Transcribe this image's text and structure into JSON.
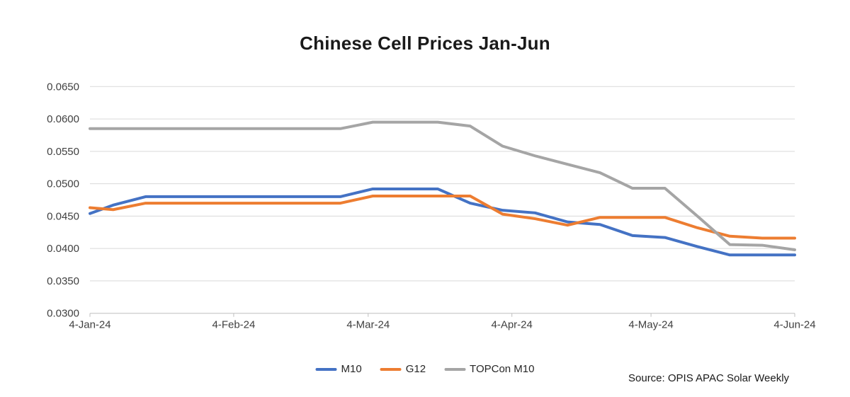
{
  "title": "Chinese Cell Prices Jan-Jun",
  "source_note": "Source: OPIS APAC Solar Weekly",
  "colors": {
    "m10": "#4472C4",
    "g12": "#ED7D31",
    "topcon_m10": "#A5A5A5",
    "gridline": "#D9D9D9",
    "axis_line": "#BFBFBF",
    "axis_text": "#404040"
  },
  "chart_data": {
    "type": "line",
    "title": "Chinese Cell Prices Jan-Jun",
    "xlabel": "",
    "ylabel": "",
    "grid": true,
    "legend_position": "bottom",
    "source": "Source: OPIS APAC Solar Weekly",
    "x": [
      "4-Jan-24",
      "9-Jan-24",
      "16-Jan-24",
      "23-Jan-24",
      "30-Jan-24",
      "6-Feb-24",
      "13-Feb-24",
      "20-Feb-24",
      "27-Feb-24",
      "5-Mar-24",
      "12-Mar-24",
      "19-Mar-24",
      "26-Mar-24",
      "2-Apr-24",
      "9-Apr-24",
      "16-Apr-24",
      "23-Apr-24",
      "30-Apr-24",
      "7-May-24",
      "14-May-24",
      "21-May-24",
      "28-May-24",
      "4-Jun-24"
    ],
    "x_day_offsets": [
      0,
      5,
      12,
      19,
      26,
      33,
      40,
      47,
      54,
      61,
      68,
      75,
      82,
      89,
      96,
      103,
      110,
      117,
      124,
      131,
      138,
      145,
      152
    ],
    "x_ticks": [
      {
        "label": "4-Jan-24",
        "day": 0
      },
      {
        "label": "4-Feb-24",
        "day": 31
      },
      {
        "label": "4-Mar-24",
        "day": 60
      },
      {
        "label": "4-Apr-24",
        "day": 91
      },
      {
        "label": "4-May-24",
        "day": 121
      },
      {
        "label": "4-Jun-24",
        "day": 152
      }
    ],
    "y_axis": {
      "min": 0.03,
      "max": 0.065,
      "step": 0.005
    },
    "y_ticks": [
      {
        "label": "0.0650",
        "value": 0.065
      },
      {
        "label": "0.0600",
        "value": 0.06
      },
      {
        "label": "0.0550",
        "value": 0.055
      },
      {
        "label": "0.0500",
        "value": 0.05
      },
      {
        "label": "0.0450",
        "value": 0.045
      },
      {
        "label": "0.0400",
        "value": 0.04
      },
      {
        "label": "0.0350",
        "value": 0.035
      },
      {
        "label": "0.0300",
        "value": 0.03
      }
    ],
    "series": [
      {
        "name": "M10",
        "color": "#4472C4",
        "values": [
          0.0454,
          0.0467,
          0.048,
          0.048,
          0.048,
          0.048,
          0.048,
          0.048,
          0.048,
          0.0492,
          0.0492,
          0.0492,
          0.047,
          0.0459,
          0.0455,
          0.0441,
          0.0437,
          0.042,
          0.0417,
          0.0403,
          0.039,
          0.039,
          0.039
        ]
      },
      {
        "name": "G12",
        "color": "#ED7D31",
        "values": [
          0.0463,
          0.046,
          0.047,
          0.047,
          0.047,
          0.047,
          0.047,
          0.047,
          0.047,
          0.0481,
          0.0481,
          0.0481,
          0.0481,
          0.0453,
          0.0446,
          0.0436,
          0.0448,
          0.0448,
          0.0448,
          0.0432,
          0.0419,
          0.0416,
          0.0416
        ]
      },
      {
        "name": "TOPCon M10",
        "color": "#A5A5A5",
        "values": [
          0.0585,
          0.0585,
          0.0585,
          0.0585,
          0.0585,
          0.0585,
          0.0585,
          0.0585,
          0.0585,
          0.0595,
          0.0595,
          0.0595,
          0.0589,
          0.0558,
          0.0543,
          0.053,
          0.0517,
          0.0493,
          0.0493,
          0.045,
          0.0406,
          0.0405,
          0.0398
        ]
      }
    ]
  }
}
